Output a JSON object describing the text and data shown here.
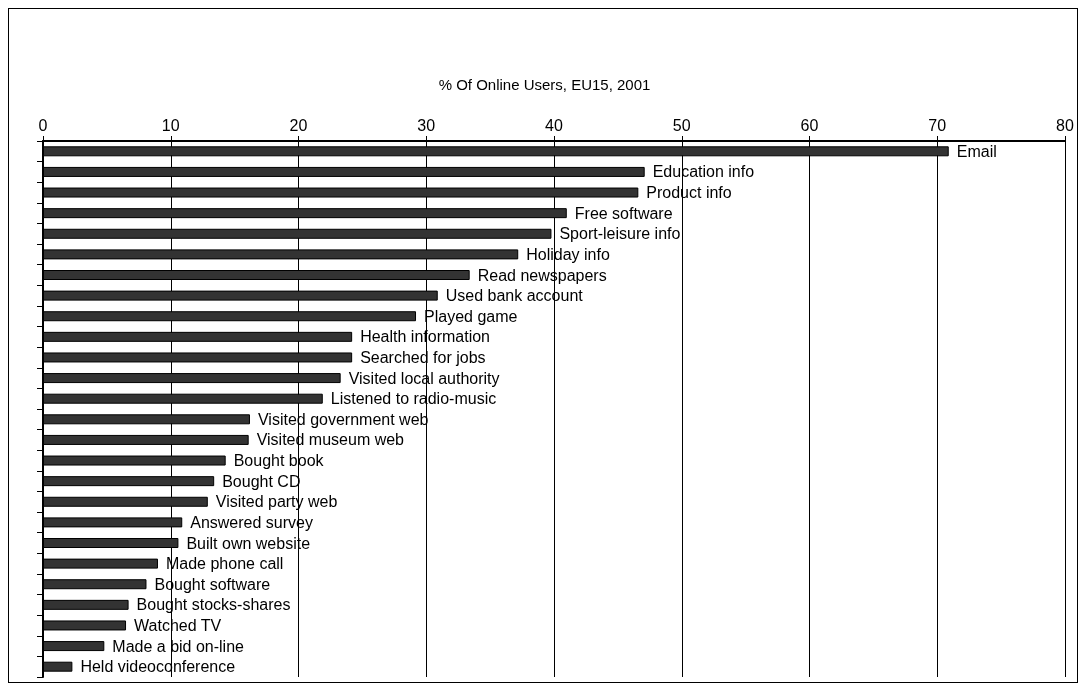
{
  "chart_data": {
    "type": "bar",
    "orientation": "horizontal",
    "title": "% Of Online Users, EU15, 2001",
    "categories": [
      "Email",
      "Education info",
      "Product info",
      "Free software",
      "Sport-leisure info",
      "Holiday info",
      "Read newspapers",
      "Used bank account",
      "Played game",
      "Health information",
      "Searched for jobs",
      "Visited local authority",
      "Listened to radio-music",
      "Visited government web",
      "Visited museum web",
      "Bought book",
      "Bought CD",
      "Visited party web",
      "Answered survey",
      "Built own website",
      "Made phone call",
      "Bought software",
      "Bought stocks-shares",
      "Watched TV",
      "Made a bid on-line",
      "Held videoconference"
    ],
    "values": [
      70.9,
      47.1,
      46.6,
      41.0,
      39.8,
      37.2,
      33.4,
      30.9,
      29.2,
      24.2,
      24.2,
      23.3,
      21.9,
      16.2,
      16.1,
      14.3,
      13.4,
      12.9,
      10.9,
      10.6,
      9.0,
      8.1,
      6.7,
      6.5,
      4.8,
      2.3
    ],
    "color": "#333333",
    "xlim": [
      0,
      80
    ],
    "xticks": [
      0,
      10,
      20,
      30,
      40,
      50,
      60,
      70,
      80
    ],
    "grid": "x",
    "tick_labels": "x"
  }
}
